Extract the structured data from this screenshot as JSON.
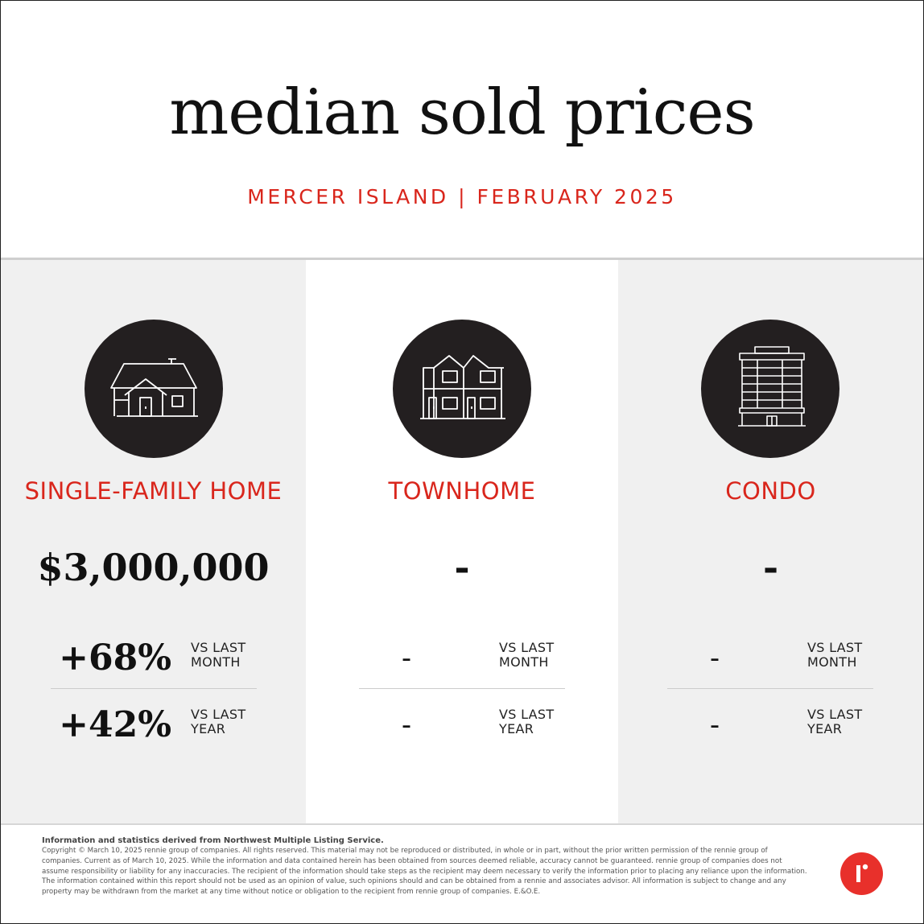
{
  "header": {
    "title": "median sold prices",
    "subtitle": "MERCER ISLAND | FEBRUARY 2025"
  },
  "columns": [
    {
      "icon": "house-icon",
      "label": "SINGLE-FAMILY HOME",
      "price": "$3,000,000",
      "month_change": "+68%",
      "month_label_1": "VS LAST",
      "month_label_2": "MONTH",
      "year_change": "+42%",
      "year_label_1": "VS LAST",
      "year_label_2": "YEAR"
    },
    {
      "icon": "townhome-icon",
      "label": "TOWNHOME",
      "price": "-",
      "month_change": "-",
      "month_label_1": "VS LAST",
      "month_label_2": "MONTH",
      "year_change": "-",
      "year_label_1": "VS LAST",
      "year_label_2": "YEAR"
    },
    {
      "icon": "condo-building-icon",
      "label": "CONDO",
      "price": "-",
      "month_change": "-",
      "month_label_1": "VS LAST",
      "month_label_2": "MONTH",
      "year_change": "-",
      "year_label_1": "VS LAST",
      "year_label_2": "YEAR"
    }
  ],
  "footer": {
    "source": "Information and statistics derived from Northwest Multiple Listing Service.",
    "disclaimer": "Copyright © March 10, 2025 rennie group of companies. All rights reserved. This material may not be reproduced or distributed, in whole or in part, without the prior written permission of the rennie group of companies. Current as of March 10, 2025. While the information and data contained herein has been obtained from sources deemed reliable, accuracy cannot be guaranteed. rennie group of companies does not assume responsibility or liability for any inaccuracies. The recipient of the information should take steps as the recipient may deem necessary to verify the information prior to placing any reliance upon the information. The information contained within this report should not be used as an opinion of value, such opinions should and can be obtained from a rennie and associates advisor. All information is subject to change and any property may be withdrawn from the market at any time without notice or obligation to the recipient from rennie group of companies. E.&O.E.",
    "logo_icon": "rennie-logo-icon"
  },
  "colors": {
    "accent": "#d9261c",
    "icon_circle": "#231f20",
    "panel_gray": "#f0f0f0",
    "logo_red": "#e8302b"
  }
}
